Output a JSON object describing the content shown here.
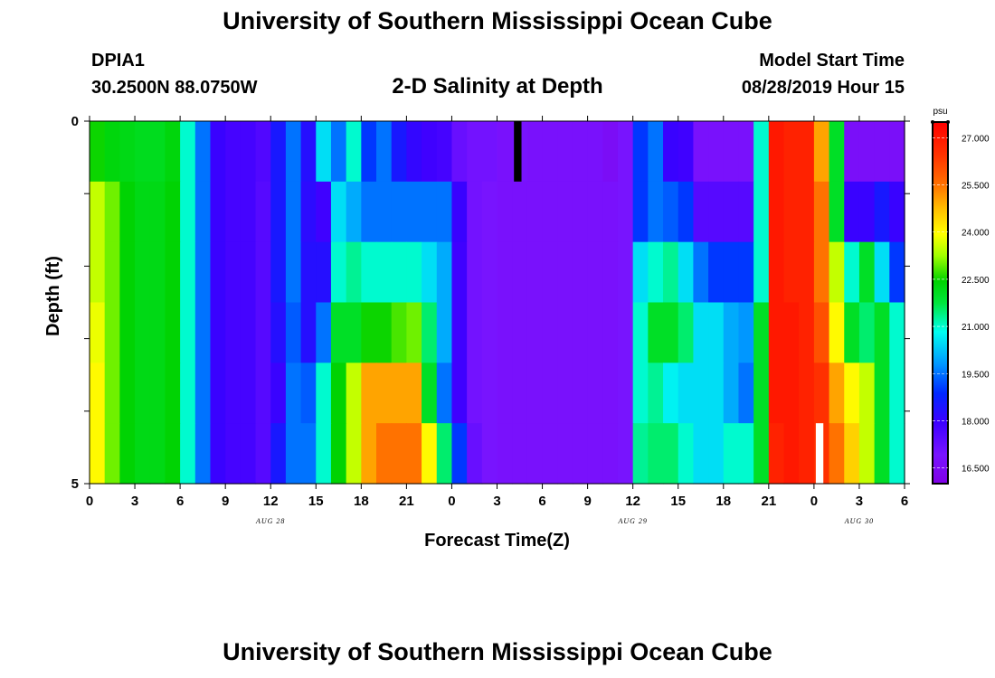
{
  "header": {
    "title": "University of Southern Mississippi Ocean Cube",
    "station": "DPIA1",
    "coords": "30.2500N 88.0750W",
    "subtitle": "2-D Salinity at Depth",
    "start_label": "Model Start Time",
    "start_value": "08/28/2019 Hour 15"
  },
  "footer": {
    "title": "University of Southern Mississippi Ocean Cube"
  },
  "chart_data": {
    "type": "heatmap",
    "title": "2-D Salinity at Depth",
    "xlabel": "Forecast Time(Z)",
    "ylabel": "Depth (ft)",
    "x_ticks": [
      "0",
      "3",
      "6",
      "9",
      "12",
      "15",
      "18",
      "21",
      "0",
      "3",
      "6",
      "9",
      "12",
      "15",
      "18",
      "21",
      "0",
      "3",
      "6"
    ],
    "date_labels": [
      {
        "text": "AUG 28",
        "hour": 12
      },
      {
        "text": "AUG 29",
        "hour": 36
      },
      {
        "text": "AUG 30",
        "hour": 51
      }
    ],
    "x_range_hours": [
      0,
      54
    ],
    "y_range_ft": [
      0,
      5
    ],
    "y_ticks": [
      "0",
      "5"
    ],
    "colorbar": {
      "unit": "psu",
      "vmin": 16.0,
      "vmax": 27.5,
      "ticks": [
        "27.000",
        "25.500",
        "24.000",
        "22.500",
        "21.000",
        "19.500",
        "18.000",
        "16.500"
      ],
      "tick_values": [
        27.0,
        25.5,
        24.0,
        22.5,
        21.0,
        19.5,
        18.0,
        16.5
      ]
    },
    "column_hours": [
      0,
      1,
      2,
      3,
      4,
      5,
      6,
      7,
      8,
      9,
      10,
      11,
      12,
      13,
      14,
      15,
      16,
      17,
      18,
      19,
      20,
      21,
      22,
      23,
      24,
      25,
      26,
      27,
      28,
      29,
      30,
      31,
      32,
      33,
      34,
      35,
      36,
      37,
      38,
      39,
      40,
      41,
      42,
      43,
      44,
      45,
      46,
      47,
      48,
      49,
      50,
      51,
      52,
      53
    ],
    "salinity_psu": [
      [
        22.5,
        22.3,
        22.2,
        22.1,
        22.1,
        22.3,
        21.0,
        19.5,
        18.0,
        17.8,
        17.8,
        17.6,
        18.5,
        19.5,
        18.3,
        20.5,
        19.5,
        21.0,
        19.0,
        19.5,
        18.5,
        18.1,
        17.9,
        17.8,
        17.2,
        17.0,
        17.0,
        16.8,
        16.9,
        16.8,
        16.8,
        16.8,
        16.8,
        16.8,
        16.6,
        16.9,
        19.0,
        19.5,
        18.0,
        17.9,
        16.8,
        16.8,
        16.8,
        16.8,
        21.0,
        27.0,
        26.8,
        26.8,
        25.0,
        22.0,
        16.7,
        16.7,
        16.7,
        16.7
      ],
      [
        23.5,
        23.0,
        22.4,
        22.2,
        22.2,
        22.4,
        21.0,
        19.5,
        18.0,
        17.8,
        17.8,
        17.5,
        18.5,
        19.5,
        18.2,
        17.9,
        20.5,
        20.0,
        19.5,
        19.5,
        19.5,
        19.5,
        19.5,
        19.5,
        18.0,
        17.0,
        16.9,
        16.8,
        16.8,
        16.8,
        16.8,
        16.8,
        16.8,
        16.8,
        16.8,
        16.9,
        19.0,
        19.5,
        19.3,
        19.0,
        17.5,
        17.5,
        17.5,
        17.5,
        21.0,
        27.0,
        26.8,
        26.8,
        25.5,
        22.0,
        18.0,
        18.0,
        18.5,
        18.0
      ],
      [
        23.5,
        23.0,
        22.4,
        22.2,
        22.2,
        22.4,
        21.0,
        19.5,
        18.0,
        17.8,
        17.8,
        17.5,
        18.5,
        19.5,
        18.3,
        18.3,
        21.0,
        21.3,
        21.0,
        21.0,
        21.0,
        21.0,
        20.5,
        20.0,
        17.9,
        17.0,
        16.9,
        16.8,
        16.8,
        16.8,
        16.8,
        16.8,
        16.8,
        16.8,
        16.8,
        16.9,
        20.5,
        21.0,
        21.3,
        20.5,
        19.5,
        19.0,
        19.0,
        19.0,
        21.0,
        27.0,
        26.8,
        26.8,
        25.5,
        23.5,
        21.0,
        22.0,
        20.5,
        19.0
      ],
      [
        23.8,
        23.0,
        22.4,
        22.2,
        22.2,
        22.4,
        21.0,
        19.5,
        18.0,
        17.8,
        17.8,
        17.5,
        18.3,
        19.3,
        18.3,
        19.5,
        22.0,
        22.0,
        22.5,
        22.5,
        22.8,
        23.0,
        21.5,
        20.0,
        17.9,
        17.0,
        16.9,
        16.8,
        16.8,
        16.8,
        16.8,
        16.8,
        16.8,
        16.8,
        16.8,
        16.9,
        21.0,
        22.0,
        22.0,
        21.5,
        20.5,
        20.5,
        20.0,
        19.8,
        22.0,
        27.0,
        27.0,
        26.8,
        26.0,
        24.0,
        22.0,
        21.5,
        22.0,
        21.0
      ],
      [
        24.0,
        23.0,
        22.4,
        22.2,
        22.2,
        22.4,
        21.0,
        19.5,
        18.0,
        17.8,
        17.8,
        17.5,
        18.0,
        19.5,
        19.3,
        21.0,
        22.4,
        23.5,
        25.0,
        25.0,
        25.0,
        25.0,
        22.0,
        19.5,
        17.9,
        17.0,
        16.9,
        16.8,
        16.8,
        16.8,
        16.8,
        16.8,
        16.8,
        16.8,
        16.8,
        16.9,
        21.0,
        21.3,
        20.7,
        20.5,
        20.5,
        20.5,
        20.0,
        19.5,
        22.0,
        27.0,
        27.0,
        26.8,
        26.5,
        25.0,
        24.0,
        23.5,
        22.0,
        21.0
      ],
      [
        24.0,
        23.0,
        22.4,
        22.2,
        22.2,
        22.4,
        21.0,
        19.5,
        18.0,
        17.8,
        17.8,
        17.5,
        18.5,
        19.5,
        19.5,
        21.0,
        22.4,
        23.5,
        25.0,
        25.5,
        25.5,
        25.5,
        24.0,
        21.5,
        19.0,
        17.2,
        16.9,
        16.8,
        16.8,
        16.8,
        16.8,
        16.8,
        16.8,
        16.8,
        16.8,
        16.9,
        21.3,
        21.5,
        21.5,
        21.0,
        20.5,
        20.5,
        21.0,
        21.0,
        22.0,
        26.8,
        27.0,
        26.8,
        26.5,
        25.5,
        24.5,
        23.5,
        22.0,
        21.0
      ]
    ],
    "missing_cells": [
      {
        "hour": 28,
        "width_hours": 0.5,
        "depth_row": 0,
        "color": "#000000"
      },
      {
        "hour": 48,
        "width_hours": 0.5,
        "depth_row": 5,
        "color": "#ffffff",
        "row_fraction_from_bottom": 1.0
      }
    ]
  }
}
